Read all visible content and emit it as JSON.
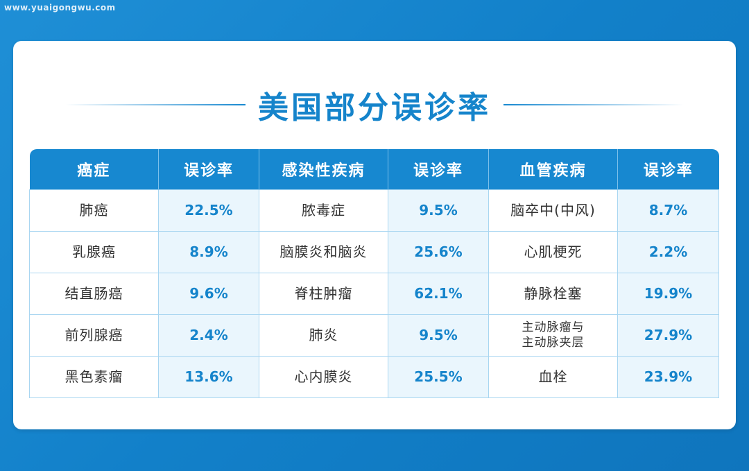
{
  "watermark": "www.yuaigongwu.com",
  "title": "美国部分误诊率",
  "colors": {
    "primary": "#1788d0",
    "rate_bg": "#eaf6fd",
    "background": "#1280c9"
  },
  "table": {
    "headers": [
      "癌症",
      "误诊率",
      "感染性疾病",
      "误诊率",
      "血管疾病",
      "误诊率"
    ],
    "rows": [
      [
        "肺癌",
        "22.5%",
        "脓毒症",
        "9.5%",
        "脑卒中(中风)",
        "8.7%"
      ],
      [
        "乳腺癌",
        "8.9%",
        "脑膜炎和脑炎",
        "25.6%",
        "心肌梗死",
        "2.2%"
      ],
      [
        "结直肠癌",
        "9.6%",
        "脊柱肿瘤",
        "62.1%",
        "静脉栓塞",
        "19.9%"
      ],
      [
        "前列腺癌",
        "2.4%",
        "肺炎",
        "9.5%",
        "主动脉瘤与\n主动脉夹层",
        "27.9%"
      ],
      [
        "黑色素瘤",
        "13.6%",
        "心内膜炎",
        "25.5%",
        "血栓",
        "23.9%"
      ]
    ]
  }
}
